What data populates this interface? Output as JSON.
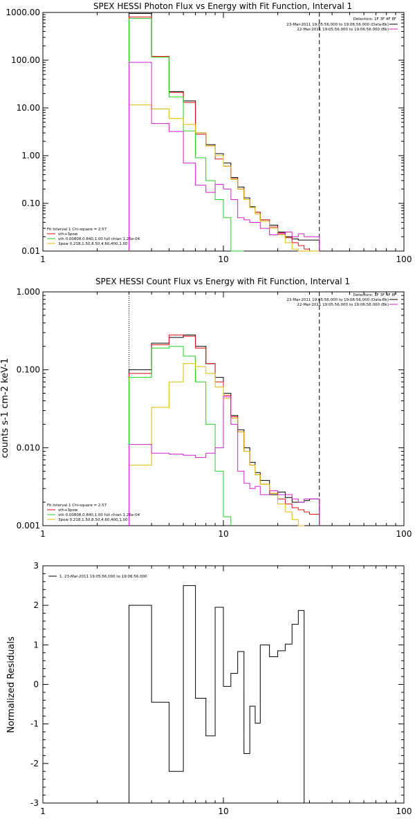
{
  "colors": {
    "black": "#000000",
    "red": "#dd1111",
    "green": "#22cc22",
    "yellow": "#ddbb00",
    "magenta": "#cc22cc"
  },
  "chart_data": [
    {
      "type": "line",
      "title": "SPEX HESSI Photon Flux vs Energy with Fit Function, Interval 1",
      "xscale": "log",
      "yscale": "log",
      "xlim": [
        1,
        100
      ],
      "ylim": [
        0.01,
        1000
      ],
      "xtick_labels": [
        "1",
        "10",
        "100"
      ],
      "ytick_labels": [
        "0.01",
        "0.10",
        "1.00",
        "10.00",
        "100.00",
        "1000.00"
      ],
      "legend_right": [
        "Detectors: 1F 3F 4F 8F",
        "23-Mar-2011 19:05:56.000 to 19:06:56.000 (Data-Bk)",
        "22-Mar-2011 19:05:56.000 to 19:06:56.000 (Bk)"
      ],
      "legend_left": [
        "Fit Interval  1    Chi-square = 2.57",
        "vth+3pow",
        "vth 0.00808,0.840,1.00   full chian 1.26e-04",
        "3pow 0.218,1.50,8.50,4.60,400,1.00"
      ],
      "vlines": [
        3,
        34
      ],
      "edges": [
        3,
        4,
        5,
        6,
        7,
        8,
        9,
        10,
        11,
        12,
        13,
        14,
        15,
        16,
        18,
        20,
        22,
        24,
        26,
        28,
        30,
        34
      ],
      "series": [
        {
          "name": "data",
          "color": "black",
          "values": [
            950,
            120,
            22,
            14,
            3.0,
            1.7,
            1.1,
            0.7,
            0.35,
            0.22,
            0.13,
            0.085,
            0.065,
            0.045,
            0.035,
            0.025,
            0.02,
            0.018,
            0.017,
            0.017,
            0.017
          ]
        },
        {
          "name": "vth+3pow",
          "color": "red",
          "values": [
            800,
            120,
            21,
            13,
            2.8,
            1.6,
            0.85,
            0.6,
            0.33,
            0.2,
            0.12,
            0.082,
            0.065,
            0.045,
            0.032,
            0.024,
            0.019,
            0.015,
            0.013,
            0.011,
            0.009
          ]
        },
        {
          "name": "vth",
          "color": "green",
          "values": [
            750,
            115,
            17,
            3.3,
            0.9,
            0.3,
            0.12,
            0.05,
            0.01,
            0.005
          ]
        },
        {
          "name": "3pow",
          "color": "yellow",
          "values": [
            11.5,
            9.5,
            6,
            4.5,
            3.0,
            1.6,
            1.0,
            0.6,
            0.32,
            0.2,
            0.12,
            0.082,
            0.06,
            0.042,
            0.03,
            0.022,
            0.015,
            0.011,
            0.009,
            0.008,
            0.005
          ]
        },
        {
          "name": "background",
          "color": "magenta",
          "values": [
            90,
            4.7,
            3.2,
            0.7,
            0.24,
            0.17,
            0.25,
            0.2,
            0.12,
            0.05,
            0.045,
            0.04,
            0.04,
            0.03,
            0.022,
            0.023,
            0.025,
            0.02,
            0.023,
            0.02,
            0.02
          ]
        }
      ]
    },
    {
      "type": "line",
      "title": "SPEX HESSI Count Flux vs Energy with Fit Function, Interval 1",
      "ylabel": "counts s-1 cm-2 keV-1",
      "xscale": "log",
      "yscale": "log",
      "xlim": [
        1,
        100
      ],
      "ylim": [
        0.001,
        1
      ],
      "xtick_labels": [
        "1",
        "10",
        "100"
      ],
      "ytick_labels": [
        "0.001",
        "0.010",
        "0.100",
        "1.000"
      ],
      "legend_right": [
        "Detectors: 1F 3F 4F 8F",
        "23-Mar-2011 19:05:56.000 to 19:06:56.000 (Data-Bk)",
        "22-Mar-2011 19:05:56.000 to 19:06:56.000 (Bk)"
      ],
      "legend_left": [
        "Fit Interval  1    Chi-square = 2.57",
        "vth+3pow",
        "vth 0.00808,0.840,1.00   full chian 1.26e-04",
        "3pow 0.218,1.50,8.50,4.60,400,1.00"
      ],
      "vlines": [
        3,
        34
      ],
      "edges": [
        3,
        4,
        5,
        6,
        7,
        8,
        9,
        10,
        11,
        12,
        13,
        14,
        15,
        16,
        18,
        20,
        22,
        24,
        26,
        28,
        30,
        34
      ],
      "series": [
        {
          "name": "data",
          "color": "black",
          "values": [
            0.1,
            0.22,
            0.26,
            0.28,
            0.2,
            0.12,
            0.08,
            0.05,
            0.026,
            0.017,
            0.01,
            0.0065,
            0.0048,
            0.0038,
            0.0025,
            0.0027,
            0.0023,
            0.002,
            0.002,
            0.0021,
            0.0022
          ]
        },
        {
          "name": "vth+3pow",
          "color": "red",
          "values": [
            0.09,
            0.21,
            0.28,
            0.27,
            0.19,
            0.12,
            0.07,
            0.047,
            0.025,
            0.016,
            0.009,
            0.006,
            0.0045,
            0.0034,
            0.0026,
            0.0022,
            0.0019,
            0.0017,
            0.0016,
            0.0015,
            0.0014
          ]
        },
        {
          "name": "vth",
          "color": "green",
          "values": [
            0.08,
            0.19,
            0.2,
            0.15,
            0.07,
            0.02,
            0.005,
            0.0013
          ]
        },
        {
          "name": "3pow",
          "color": "yellow",
          "values": [
            0.006,
            0.033,
            0.07,
            0.12,
            0.11,
            0.09,
            0.06,
            0.043,
            0.024,
            0.016,
            0.009,
            0.006,
            0.0045,
            0.0034,
            0.0026,
            0.0019,
            0.0015,
            0.0012,
            0.001
          ]
        },
        {
          "name": "background",
          "color": "magenta",
          "values": [
            0.011,
            0.0085,
            0.0083,
            0.008,
            0.0075,
            0.0085,
            0.01,
            0.045,
            0.02,
            0.005,
            0.0035,
            0.003,
            0.0032,
            0.0025,
            0.0028,
            0.0025,
            0.0025,
            0.0022,
            0.002,
            0.0022,
            0.0022
          ]
        }
      ]
    },
    {
      "type": "line",
      "ylabel": "Normalized Residuals",
      "xscale": "log",
      "xlim": [
        1,
        100
      ],
      "ylim": [
        -3,
        3
      ],
      "xtick_labels": [
        "1",
        "10",
        "100"
      ],
      "ytick_labels": [
        "-3",
        "-2",
        "-1",
        "0",
        "1",
        "2",
        "3"
      ],
      "legend": "1. 23-Mar-2011 19:05:56.000 to 19:06:56.000",
      "edges": [
        3,
        4,
        5,
        6,
        7,
        8,
        9,
        10,
        11,
        12,
        13,
        14,
        15,
        16,
        18,
        20,
        22,
        24,
        26,
        28,
        30,
        34
      ],
      "series": [
        {
          "name": "1. 23-Mar-2011 19:05:56.000 to 19:06:56.000",
          "color": "black",
          "values": [
            2.0,
            -0.45,
            -2.2,
            2.5,
            -0.35,
            -1.3,
            1.95,
            -0.05,
            0.28,
            0.83,
            -1.75,
            -0.55,
            -0.98,
            1.0,
            0.7,
            0.85,
            1.02,
            1.52,
            1.87
          ]
        }
      ]
    }
  ]
}
